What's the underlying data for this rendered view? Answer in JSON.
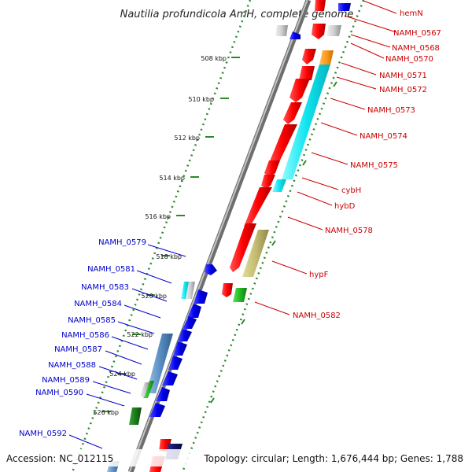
{
  "title": "Nautilia profundicola AmH, complete genome",
  "accession": "Accession: NC_012115",
  "topology": "Topology: circular; Length: 1,676,444 bp; Genes: 1,788",
  "colors": {
    "right_label": "#cc0000",
    "left_label": "#0000cc",
    "backbone": "#888888",
    "tick": "#2a8a2a"
  },
  "kbp_ticks": [
    "508 kbp",
    "510 kbp",
    "512 kbp",
    "514 kbp",
    "516 kbp",
    "518 kbp",
    "520 kbp",
    "522 kbp",
    "524 kbp",
    "526 kbp"
  ],
  "right_labels": [
    "hemN",
    "NAMH_0567",
    "NAMH_0568",
    "NAMH_0570",
    "NAMH_0571",
    "NAMH_0572",
    "NAMH_0573",
    "NAMH_0574",
    "NAMH_0575",
    "cybH",
    "hybD",
    "NAMH_0578",
    "hypF",
    "NAMH_0582"
  ],
  "left_labels": [
    "NAMH_0579",
    "NAMH_0581",
    "NAMH_0583",
    "NAMH_0584",
    "NAMH_0585",
    "NAMH_0586",
    "NAMH_0587",
    "NAMH_0588",
    "NAMH_0589",
    "NAMH_0590",
    "NAMH_0592"
  ]
}
